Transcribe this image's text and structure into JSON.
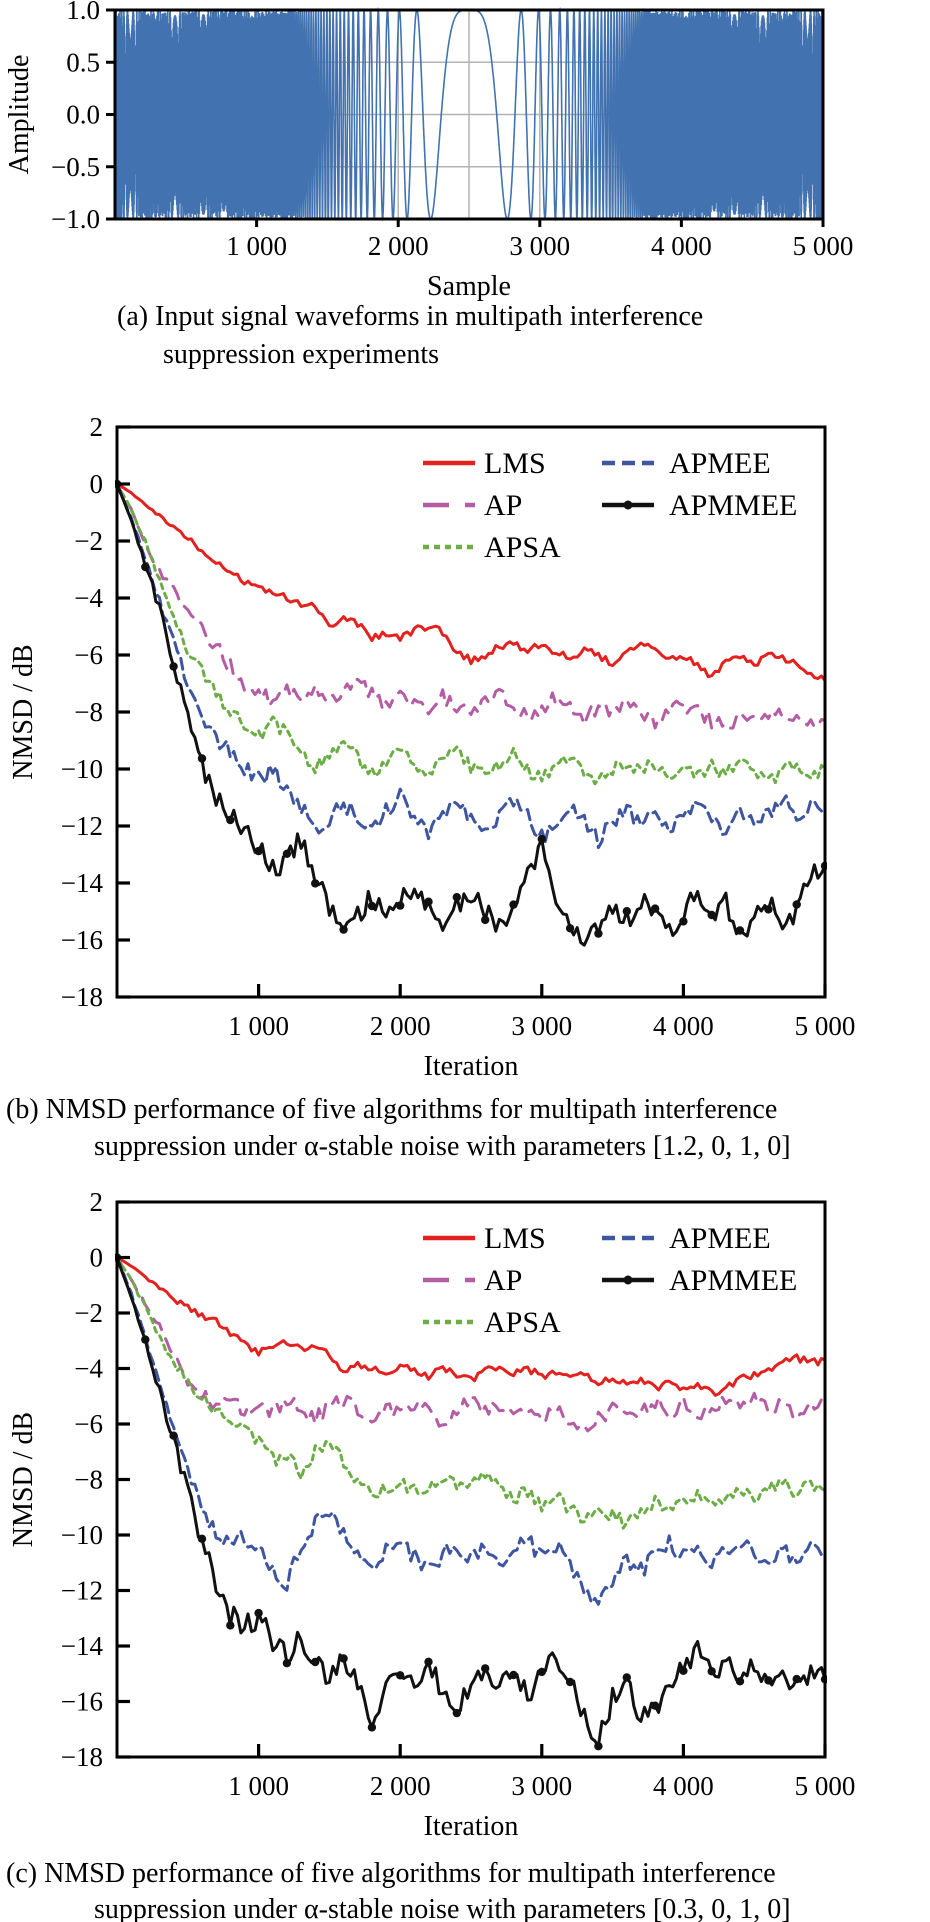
{
  "page": {
    "background": "#ffffff"
  },
  "captions": {
    "a_line1": "(a) Input signal waveforms in multipath interference",
    "a_line2": "suppression experiments",
    "b_line1": "(b) NMSD performance of five algorithms for multipath interference",
    "b_line2": "suppression under α-stable noise with parameters [1.2, 0, 1, 0]",
    "c_line1": "(c) NMSD performance of five algorithms for multipath interference",
    "c_line2": "suppression under α-stable noise with parameters [0.3, 0, 1, 0]"
  },
  "chart_data": [
    {
      "id": "input-signal",
      "type": "line",
      "title": "",
      "xlabel": "Sample",
      "ylabel": "Amplitude",
      "xlim": [
        0,
        5000
      ],
      "ylim": [
        -1.0,
        1.0
      ],
      "x_ticks": [
        1000,
        2000,
        3000,
        4000,
        5000
      ],
      "x_tick_labels": [
        "1 000",
        "2 000",
        "3 000",
        "4 000",
        "5 000"
      ],
      "y_ticks": [
        1.0,
        0.5,
        0.0,
        -0.5,
        -1.0
      ],
      "y_tick_labels": [
        "1.0",
        "0.5",
        "0.0",
        "−0.5",
        "−1.0"
      ],
      "grid": true,
      "grid_x_step": 500,
      "grid_y_values": [
        0.5,
        0.0,
        -0.5
      ],
      "signal": {
        "kind": "symmetric chirp, amplitude ±1, lowest frequency at center sample 2500",
        "formula": "x(n) = cos(a·(n−2500)² + b·(n−2500)⁴)",
        "a": 3.9e-05,
        "b": 5.4e-11,
        "n_start": 0,
        "n_end": 5000,
        "color": "#4272b0"
      }
    },
    {
      "id": "nmsd-alpha-1.2",
      "type": "line",
      "title": "",
      "xlabel": "Iteration",
      "ylabel": "NMSD / dB",
      "xlim": [
        0,
        5000
      ],
      "ylim": [
        -18,
        2
      ],
      "x_ticks": [
        1000,
        2000,
        3000,
        4000,
        5000
      ],
      "x_tick_labels": [
        "1 000",
        "2 000",
        "3 000",
        "4 000",
        "5 000"
      ],
      "y_ticks": [
        2,
        0,
        -2,
        -4,
        -6,
        -8,
        -10,
        -12,
        -14,
        -16,
        -18
      ],
      "y_tick_labels": [
        "2",
        "0",
        "−2",
        "−4",
        "−6",
        "−8",
        "−10",
        "−12",
        "−14",
        "−16",
        "−18"
      ],
      "grid": false,
      "legend_position": "upper-center",
      "x_step": 100,
      "series": [
        {
          "name": "LMS",
          "color": "#e3211f",
          "style": "solid",
          "values": [
            0,
            -0.3,
            -0.7,
            -1.1,
            -1.5,
            -1.9,
            -2.4,
            -2.8,
            -3.1,
            -3.4,
            -3.6,
            -3.8,
            -4.0,
            -4.2,
            -4.3,
            -5.0,
            -4.7,
            -4.9,
            -5.4,
            -5.2,
            -5.4,
            -5.1,
            -5.0,
            -5.2,
            -5.9,
            -6.2,
            -6.0,
            -5.7,
            -5.6,
            -5.8,
            -5.7,
            -5.9,
            -6.1,
            -5.8,
            -6.0,
            -6.3,
            -5.9,
            -5.6,
            -5.9,
            -6.2,
            -6.0,
            -6.4,
            -6.8,
            -6.3,
            -6.0,
            -6.4,
            -5.9,
            -6.1,
            -6.3,
            -6.6,
            -6.9
          ]
        },
        {
          "name": "AP",
          "color": "#b45da4",
          "style": "long-dash",
          "values": [
            0,
            -0.9,
            -2.1,
            -3.1,
            -3.7,
            -4.4,
            -5.1,
            -5.7,
            -6.4,
            -7.0,
            -7.4,
            -7.6,
            -7.3,
            -7.5,
            -7.2,
            -7.6,
            -7.3,
            -7.0,
            -7.4,
            -7.7,
            -7.3,
            -7.6,
            -7.9,
            -7.5,
            -7.8,
            -8.1,
            -7.7,
            -7.4,
            -7.8,
            -8.1,
            -7.8,
            -7.5,
            -7.9,
            -8.2,
            -7.8,
            -8.0,
            -7.6,
            -8.0,
            -8.3,
            -7.9,
            -7.7,
            -8.0,
            -8.3,
            -8.6,
            -8.2,
            -7.9,
            -8.3,
            -8.0,
            -8.3,
            -8.5,
            -8.3
          ]
        },
        {
          "name": "APSA",
          "color": "#6cae45",
          "style": "short-dash",
          "values": [
            0,
            -0.9,
            -2.0,
            -3.4,
            -4.8,
            -5.8,
            -6.6,
            -7.4,
            -7.9,
            -8.5,
            -8.9,
            -8.3,
            -8.8,
            -9.5,
            -9.9,
            -9.4,
            -9.0,
            -9.6,
            -10.1,
            -9.7,
            -9.3,
            -9.8,
            -10.2,
            -9.7,
            -9.4,
            -9.9,
            -10.3,
            -9.8,
            -9.5,
            -10.0,
            -10.4,
            -9.9,
            -9.6,
            -10.1,
            -10.5,
            -10.0,
            -9.7,
            -10.1,
            -9.8,
            -10.2,
            -9.9,
            -10.3,
            -9.9,
            -10.2,
            -9.8,
            -10.2,
            -10.5,
            -10.1,
            -9.8,
            -10.2,
            -10.0
          ]
        },
        {
          "name": "APMEE",
          "color": "#3e55a0",
          "style": "dash",
          "values": [
            0,
            -1.2,
            -2.6,
            -4.1,
            -5.6,
            -7.0,
            -8.2,
            -8.9,
            -9.4,
            -10.0,
            -10.4,
            -10.0,
            -10.8,
            -11.3,
            -12.3,
            -11.7,
            -11.2,
            -11.7,
            -12.1,
            -11.5,
            -11.0,
            -11.6,
            -12.2,
            -11.7,
            -11.2,
            -11.8,
            -12.3,
            -11.6,
            -11.1,
            -11.7,
            -12.4,
            -11.8,
            -11.3,
            -11.9,
            -12.5,
            -11.9,
            -11.4,
            -12.0,
            -11.6,
            -12.1,
            -11.7,
            -11.2,
            -11.8,
            -12.2,
            -11.6,
            -12.0,
            -11.5,
            -11.1,
            -11.6,
            -11.3,
            -11.5
          ]
        },
        {
          "name": "APMMEE",
          "color": "#111111",
          "style": "solid-marker",
          "values": [
            0,
            -1.3,
            -2.8,
            -4.4,
            -6.4,
            -8.2,
            -9.8,
            -10.9,
            -11.5,
            -12.0,
            -12.8,
            -13.6,
            -13.1,
            -12.4,
            -13.9,
            -14.8,
            -15.8,
            -15.1,
            -14.5,
            -15.2,
            -14.7,
            -14.1,
            -14.9,
            -15.4,
            -14.8,
            -14.3,
            -15.0,
            -15.6,
            -14.7,
            -13.5,
            -12.8,
            -14.4,
            -15.2,
            -16.3,
            -15.4,
            -14.8,
            -15.3,
            -14.6,
            -15.1,
            -15.7,
            -15.0,
            -14.4,
            -15.5,
            -14.7,
            -15.9,
            -15.1,
            -14.6,
            -15.9,
            -14.8,
            -13.8,
            -13.4
          ]
        }
      ]
    },
    {
      "id": "nmsd-alpha-0.3",
      "type": "line",
      "title": "",
      "xlabel": "Iteration",
      "ylabel": "NMSD / dB",
      "xlim": [
        0,
        5000
      ],
      "ylim": [
        -18,
        2
      ],
      "x_ticks": [
        1000,
        2000,
        3000,
        4000,
        5000
      ],
      "x_tick_labels": [
        "1 000",
        "2 000",
        "3 000",
        "4 000",
        "5 000"
      ],
      "y_ticks": [
        2,
        0,
        -2,
        -4,
        -6,
        -8,
        -10,
        -12,
        -14,
        -16,
        -18
      ],
      "y_tick_labels": [
        "2",
        "0",
        "−2",
        "−4",
        "−6",
        "−8",
        "−10",
        "−12",
        "−14",
        "−16",
        "−18"
      ],
      "grid": false,
      "legend_position": "upper-center",
      "x_step": 100,
      "series": [
        {
          "name": "LMS",
          "color": "#e3211f",
          "style": "solid",
          "values": [
            0,
            -0.3,
            -0.7,
            -1.1,
            -1.5,
            -1.8,
            -2.1,
            -2.3,
            -2.7,
            -3.1,
            -3.4,
            -3.2,
            -3.0,
            -3.2,
            -3.3,
            -3.5,
            -4.1,
            -3.9,
            -4.0,
            -4.2,
            -3.9,
            -4.1,
            -4.3,
            -4.0,
            -4.2,
            -4.4,
            -4.1,
            -3.9,
            -4.2,
            -4.0,
            -4.3,
            -4.1,
            -4.4,
            -4.2,
            -4.5,
            -4.3,
            -4.6,
            -4.4,
            -4.7,
            -4.5,
            -4.8,
            -4.6,
            -4.9,
            -4.7,
            -4.4,
            -4.2,
            -4.0,
            -3.8,
            -3.6,
            -3.8,
            -3.7
          ]
        },
        {
          "name": "AP",
          "color": "#b45da4",
          "style": "long-dash",
          "values": [
            0,
            -0.8,
            -1.7,
            -2.4,
            -3.6,
            -4.5,
            -5.0,
            -5.4,
            -5.2,
            -5.5,
            -5.3,
            -5.6,
            -5.2,
            -5.5,
            -5.8,
            -5.4,
            -5.1,
            -5.5,
            -5.8,
            -5.4,
            -5.6,
            -5.2,
            -5.5,
            -5.9,
            -5.5,
            -5.2,
            -5.6,
            -5.3,
            -5.7,
            -5.4,
            -5.8,
            -5.5,
            -5.9,
            -6.3,
            -5.8,
            -5.5,
            -5.9,
            -5.6,
            -5.2,
            -5.6,
            -5.3,
            -5.7,
            -5.4,
            -5.0,
            -5.4,
            -5.1,
            -5.5,
            -5.2,
            -5.6,
            -5.3,
            -5.1
          ]
        },
        {
          "name": "APSA",
          "color": "#6cae45",
          "style": "short-dash",
          "values": [
            0,
            -0.8,
            -1.8,
            -2.9,
            -3.8,
            -4.4,
            -5.1,
            -5.6,
            -5.9,
            -6.1,
            -6.6,
            -7.3,
            -7.1,
            -7.8,
            -7.0,
            -6.5,
            -7.4,
            -8.2,
            -8.6,
            -8.3,
            -8.1,
            -8.4,
            -8.2,
            -7.9,
            -8.3,
            -8.1,
            -7.8,
            -8.3,
            -8.7,
            -8.4,
            -8.9,
            -8.6,
            -9.1,
            -9.4,
            -9.0,
            -9.3,
            -9.6,
            -9.2,
            -8.8,
            -9.2,
            -8.9,
            -8.5,
            -8.9,
            -8.6,
            -8.3,
            -8.7,
            -8.4,
            -8.1,
            -8.5,
            -8.2,
            -8.4
          ]
        },
        {
          "name": "APMEE",
          "color": "#3e55a0",
          "style": "dash",
          "values": [
            0,
            -1.3,
            -2.9,
            -4.6,
            -6.2,
            -7.8,
            -9.0,
            -10.0,
            -10.4,
            -10.0,
            -10.6,
            -11.3,
            -11.7,
            -10.4,
            -9.5,
            -9.3,
            -10.0,
            -10.8,
            -11.2,
            -10.6,
            -10.2,
            -10.8,
            -11.3,
            -10.7,
            -10.3,
            -10.9,
            -10.5,
            -11.1,
            -10.6,
            -10.2,
            -10.8,
            -10.4,
            -11.0,
            -11.9,
            -12.6,
            -11.6,
            -10.9,
            -11.3,
            -10.7,
            -10.3,
            -10.8,
            -10.4,
            -11.0,
            -10.6,
            -10.2,
            -10.7,
            -11.1,
            -10.6,
            -10.9,
            -10.4,
            -10.7
          ]
        },
        {
          "name": "APMMEE",
          "color": "#111111",
          "style": "solid-marker",
          "values": [
            0,
            -1.4,
            -3.0,
            -4.8,
            -6.6,
            -8.4,
            -10.2,
            -11.8,
            -12.9,
            -13.3,
            -13.0,
            -13.8,
            -14.3,
            -13.7,
            -14.6,
            -15.2,
            -14.5,
            -15.4,
            -16.9,
            -15.6,
            -14.8,
            -15.3,
            -14.6,
            -15.6,
            -16.2,
            -15.3,
            -14.7,
            -15.5,
            -14.9,
            -15.8,
            -15.0,
            -14.4,
            -15.3,
            -16.5,
            -17.5,
            -15.9,
            -15.2,
            -16.6,
            -16.2,
            -15.4,
            -14.8,
            -14.2,
            -15.0,
            -14.5,
            -15.3,
            -14.7,
            -15.4,
            -14.9,
            -15.5,
            -15.0,
            -15.2
          ]
        }
      ]
    }
  ]
}
